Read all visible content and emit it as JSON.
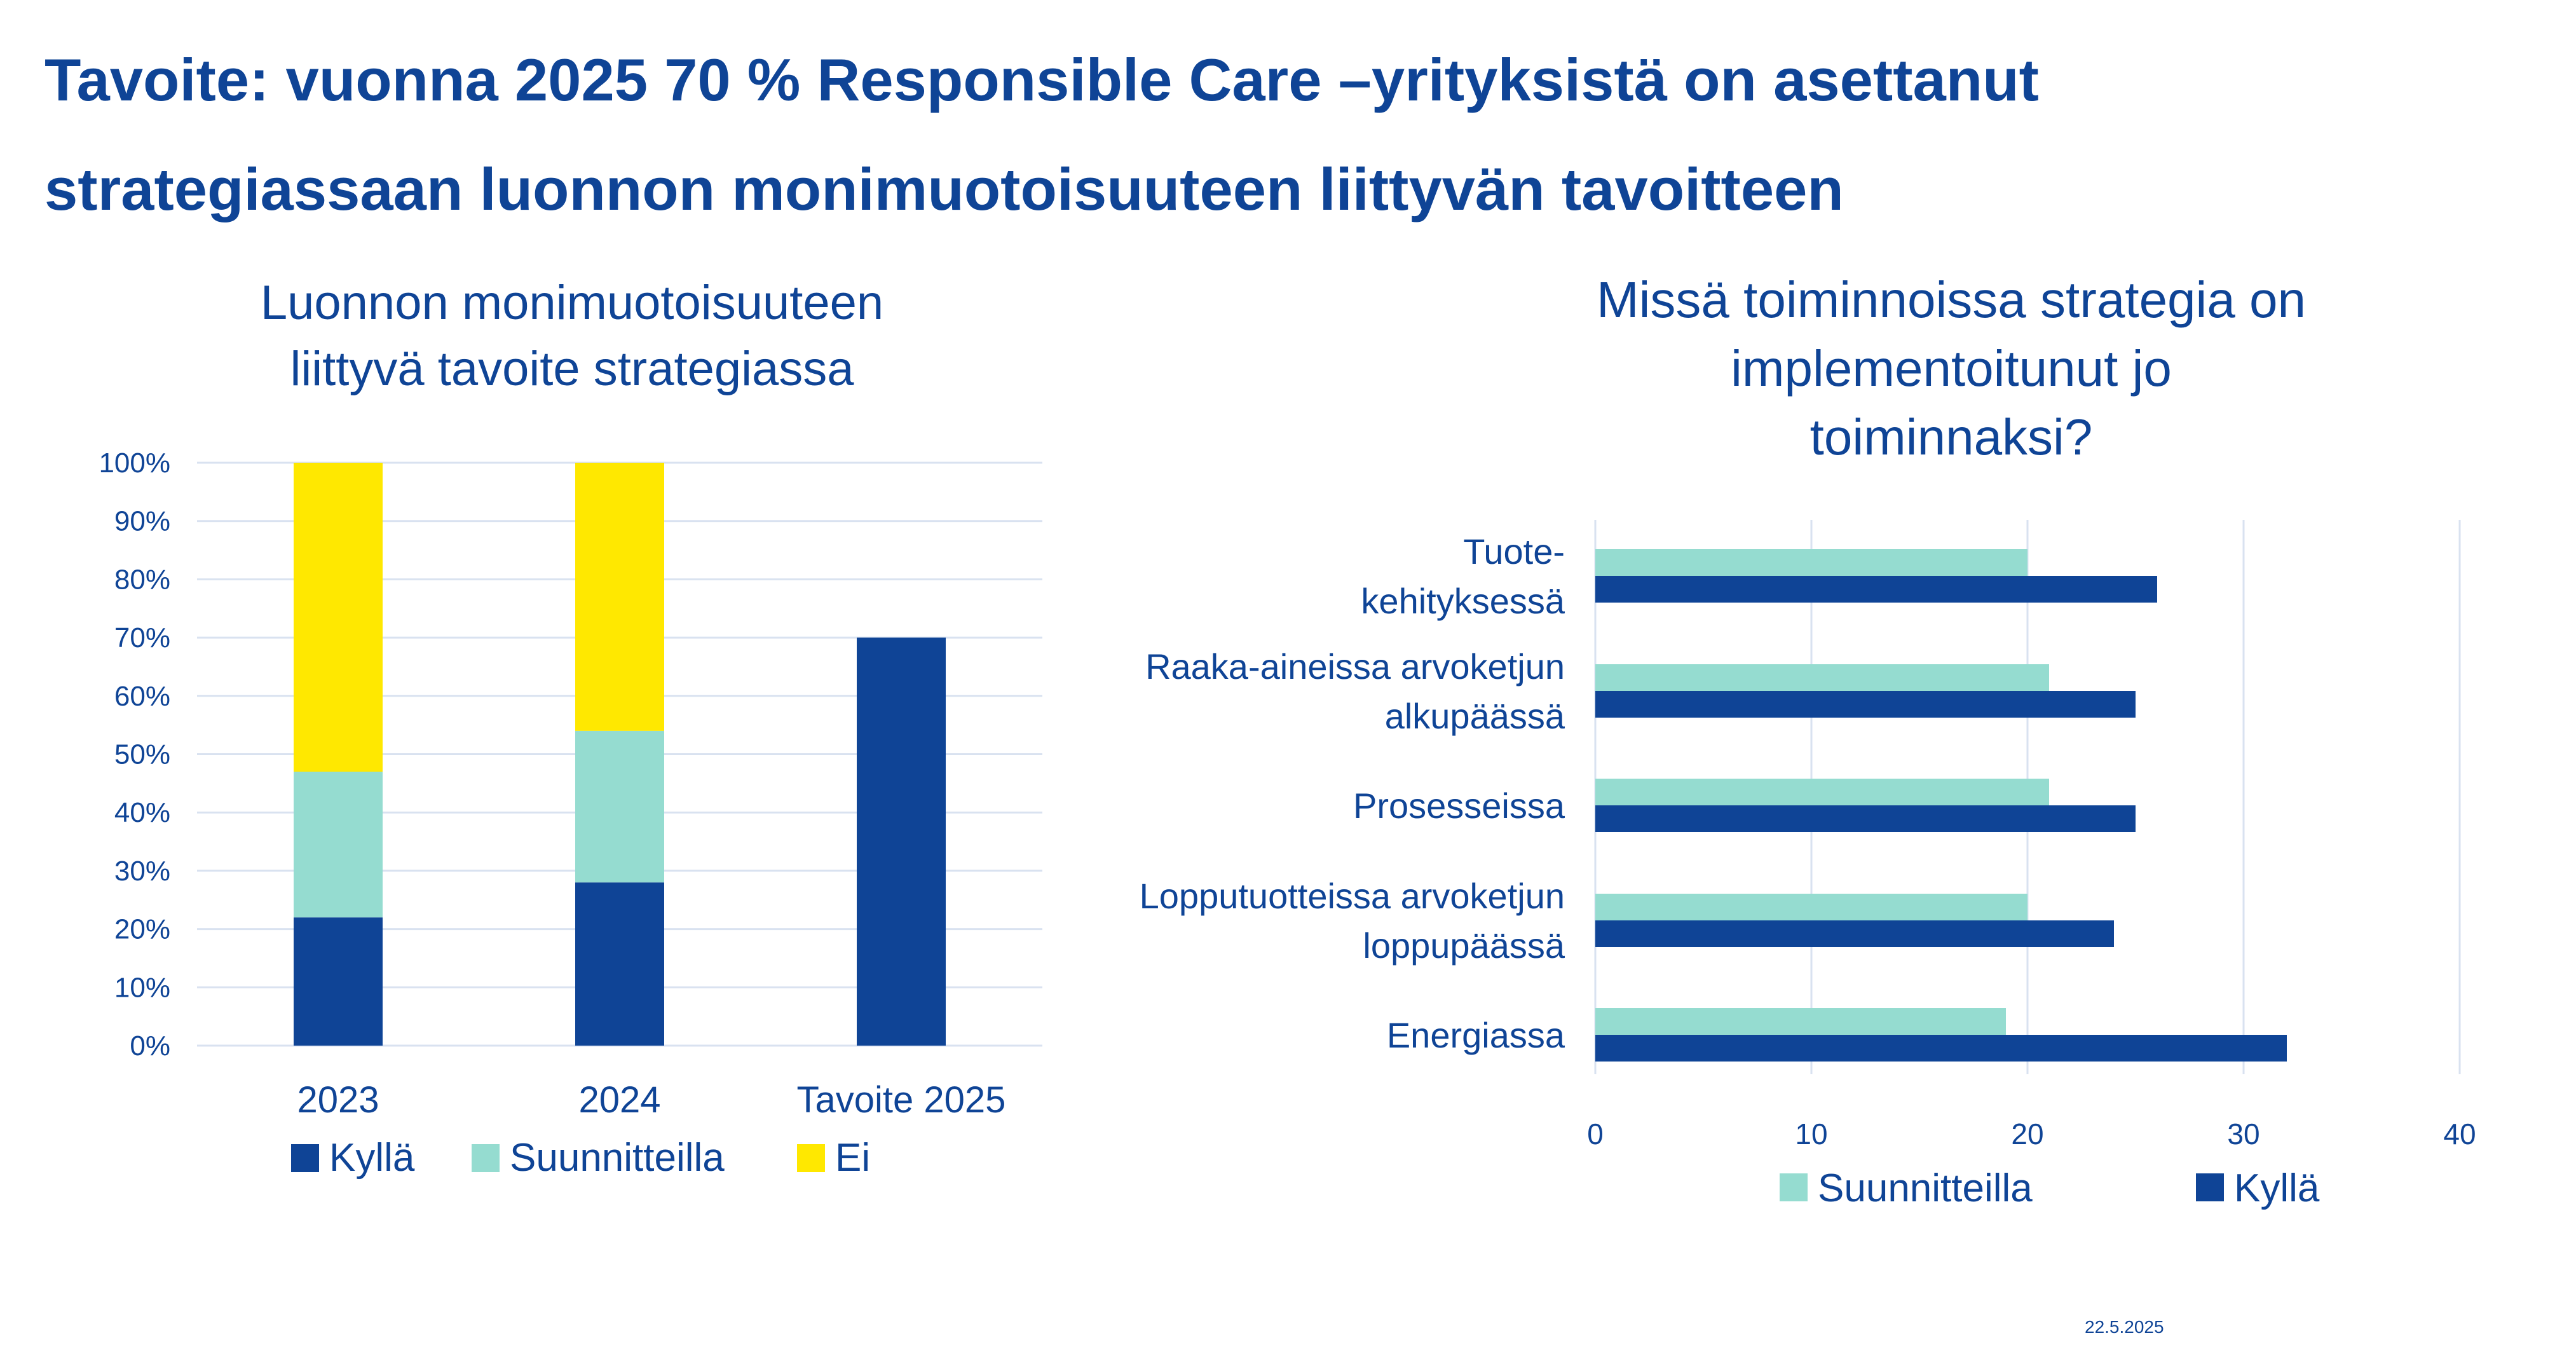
{
  "title": {
    "line1": "Tavoite: vuonna 2025 70 % Responsible Care –yrityksistä on asettanut",
    "line2": "strategiassaan luonnon monimuotoisuuteen liittyvän tavoitteen"
  },
  "footer": {
    "date": "22.5.2025"
  },
  "colors": {
    "kylla": "#0f4496",
    "suunnitteilla": "#95dcd0",
    "ei": "#ffe800",
    "grid": "#d9e2f0",
    "text": "#0f4496"
  },
  "chart_data": [
    {
      "type": "bar",
      "stacked": true,
      "title_lines": [
        "Luonnon monimuotoisuuteen",
        "liittyvä tavoite strategiassa"
      ],
      "categories": [
        "2023",
        "2024",
        "Tavoite 2025"
      ],
      "series": [
        {
          "name": "Kyllä",
          "values": [
            22,
            28,
            70
          ]
        },
        {
          "name": "Suunnitteilla",
          "values": [
            25,
            26,
            0
          ]
        },
        {
          "name": "Ei",
          "values": [
            53,
            46,
            0
          ]
        }
      ],
      "ylim": [
        0,
        100
      ],
      "yticks": [
        "0%",
        "10%",
        "20%",
        "30%",
        "40%",
        "50%",
        "60%",
        "70%",
        "80%",
        "90%",
        "100%"
      ],
      "grid": true,
      "legend": "bottom"
    },
    {
      "type": "bar",
      "orientation": "horizontal",
      "title_lines": [
        "Missä toiminnoissa strategia on",
        "implementoitunut jo",
        "toiminnaksi?"
      ],
      "categories": [
        [
          "Tuote-",
          "kehityksessä"
        ],
        [
          "Raaka-aineissa arvoketjun",
          "alkupäässä"
        ],
        [
          "Prosesseissa"
        ],
        [
          "Lopputuotteissa arvoketjun",
          "loppupäässä"
        ],
        [
          "Energiassa"
        ]
      ],
      "series": [
        {
          "name": "Suunnitteilla",
          "values": [
            20,
            21,
            21,
            20,
            19
          ]
        },
        {
          "name": "Kyllä",
          "values": [
            26,
            25,
            25,
            24,
            32
          ]
        }
      ],
      "xlim": [
        0,
        40
      ],
      "xticks": [
        "0",
        "10",
        "20",
        "30",
        "40"
      ],
      "grid": true,
      "legend": "bottom"
    }
  ]
}
